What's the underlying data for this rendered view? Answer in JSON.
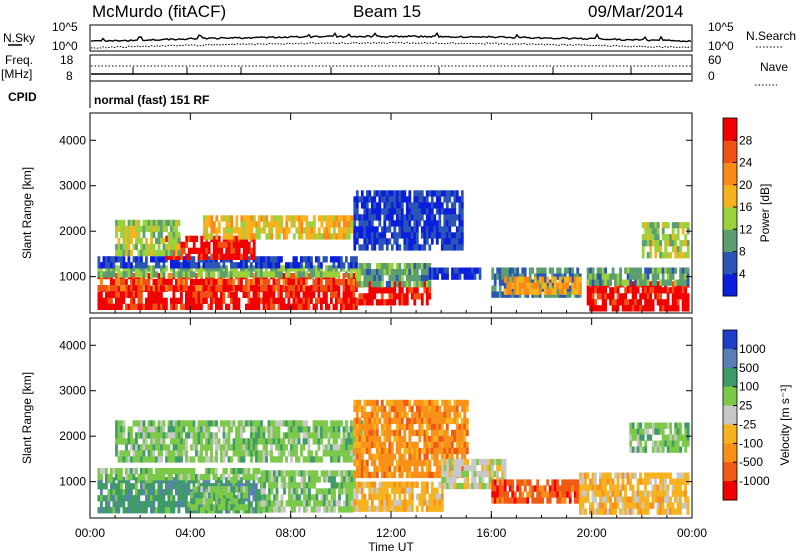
{
  "header": {
    "station": "McMurdo (fitACF)",
    "beam": "Beam 15",
    "date": "09/Mar/2014"
  },
  "top_panels": {
    "nsky_label": "N.Sky",
    "nsearch_label": "N.Search",
    "noise_left_ticks": [
      "10^5",
      "10^0"
    ],
    "noise_right_ticks": [
      "10^5",
      "10^0"
    ],
    "freq_label_1": "Freq.",
    "freq_label_2": "[MHz]",
    "freq_ticks": [
      "18",
      "8"
    ],
    "nave_label": "Nave",
    "nave_ticks": [
      "60",
      "0"
    ],
    "cpid_label": "CPID",
    "cpid_text": "normal (fast) 151 RF"
  },
  "chart_data": [
    {
      "type": "heatmap",
      "name": "power",
      "xlabel": "Time UT",
      "ylabel": "Slant Range [km]",
      "xlim": [
        0,
        24
      ],
      "ylim": [
        200,
        4600
      ],
      "xticks": [
        "00:00",
        "04:00",
        "08:00",
        "12:00",
        "16:00",
        "20:00",
        "00:00"
      ],
      "yticks": [
        1000,
        2000,
        3000,
        4000
      ],
      "colorbar": {
        "label": "Power [dB]",
        "ticks": [
          4,
          8,
          12,
          16,
          20,
          24,
          28
        ],
        "range": [
          0,
          32
        ],
        "colors": [
          "#0a1edc",
          "#2a55b5",
          "#5c9e70",
          "#9ad13c",
          "#f7b31e",
          "#f98a18",
          "#f05214",
          "#f00000"
        ]
      },
      "regions": [
        {
          "t0": 0.3,
          "t1": 10.6,
          "r0": 330,
          "r1": 800,
          "level": 30
        },
        {
          "t0": 0.3,
          "t1": 10.6,
          "r0": 800,
          "r1": 1080,
          "level": 27
        },
        {
          "t0": 0.3,
          "t1": 10.6,
          "r0": 1080,
          "r1": 1250,
          "level": 12
        },
        {
          "t0": 0.3,
          "t1": 10.6,
          "r0": 1250,
          "r1": 1450,
          "level": 4
        },
        {
          "t0": 3.0,
          "t1": 6.5,
          "r0": 1450,
          "r1": 1900,
          "level": 30
        },
        {
          "t0": 1.0,
          "t1": 3.5,
          "r0": 1500,
          "r1": 2250,
          "level": 14
        },
        {
          "t0": 4.5,
          "t1": 10.5,
          "r0": 1900,
          "r1": 2350,
          "level": 18
        },
        {
          "t0": 10.6,
          "t1": 13.5,
          "r0": 430,
          "r1": 900,
          "level": 30
        },
        {
          "t0": 10.6,
          "t1": 13.5,
          "r0": 900,
          "r1": 1300,
          "level": 10
        },
        {
          "t0": 10.5,
          "t1": 14.8,
          "r0": 1600,
          "r1": 2900,
          "level": 4
        },
        {
          "t0": 13.5,
          "t1": 15.5,
          "r0": 950,
          "r1": 1200,
          "level": 4
        },
        {
          "t0": 16.0,
          "t1": 19.5,
          "r0": 600,
          "r1": 1200,
          "level": 8
        },
        {
          "t0": 16.5,
          "t1": 19.5,
          "r0": 700,
          "r1": 1000,
          "level": 20
        },
        {
          "t0": 19.8,
          "t1": 23.8,
          "r0": 350,
          "r1": 900,
          "level": 30
        },
        {
          "t0": 19.8,
          "t1": 23.8,
          "r0": 900,
          "r1": 1200,
          "level": 10
        },
        {
          "t0": 22.0,
          "t1": 23.8,
          "r0": 1500,
          "r1": 2200,
          "level": 14
        }
      ]
    },
    {
      "type": "heatmap",
      "name": "velocity",
      "xlabel": "Time UT",
      "ylabel": "Slant Range [km]",
      "xlim": [
        0,
        24
      ],
      "ylim": [
        200,
        4600
      ],
      "xticks": [
        "00:00",
        "04:00",
        "08:00",
        "12:00",
        "16:00",
        "20:00",
        "00:00"
      ],
      "yticks": [
        1000,
        2000,
        3000,
        4000
      ],
      "colorbar": {
        "label": "Velocity [m s⁻¹]",
        "ticks": [
          "1000",
          "500",
          "100",
          "25",
          "-25",
          "-100",
          "-500",
          "-1000"
        ],
        "colors": [
          "#1f3fc8",
          "#5a7fb8",
          "#3e9a66",
          "#7cc94a",
          "#c8c8c8",
          "#f7b31e",
          "#f9901a",
          "#f05a14",
          "#f00000"
        ]
      },
      "regions": [
        {
          "t0": 0.3,
          "t1": 6.8,
          "r0": 320,
          "r1": 1100,
          "level": 2
        },
        {
          "t0": 0.3,
          "t1": 6.8,
          "r0": 1100,
          "r1": 1300,
          "level": 3
        },
        {
          "t0": 4.0,
          "t1": 6.2,
          "r0": 400,
          "r1": 900,
          "level": 3
        },
        {
          "t0": 6.8,
          "t1": 10.5,
          "r0": 330,
          "r1": 1250,
          "level": 3
        },
        {
          "t0": 1.0,
          "t1": 10.8,
          "r0": 1500,
          "r1": 2350,
          "level": 3
        },
        {
          "t0": 10.5,
          "t1": 14.0,
          "r0": 400,
          "r1": 1000,
          "level": 5
        },
        {
          "t0": 10.5,
          "t1": 15.0,
          "r0": 1200,
          "r1": 2800,
          "level": 6
        },
        {
          "t0": 14.0,
          "t1": 16.5,
          "r0": 950,
          "r1": 1500,
          "level": 4
        },
        {
          "t0": 16.0,
          "t1": 19.5,
          "r0": 550,
          "r1": 1050,
          "level": 7
        },
        {
          "t0": 19.5,
          "t1": 23.8,
          "r0": 330,
          "r1": 1200,
          "level": 5
        },
        {
          "t0": 21.5,
          "t1": 23.8,
          "r0": 1700,
          "r1": 2300,
          "level": 3
        }
      ]
    }
  ]
}
